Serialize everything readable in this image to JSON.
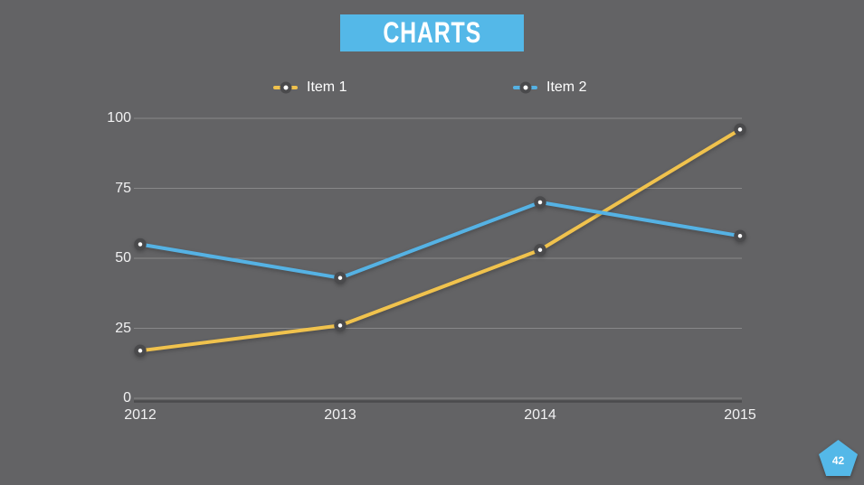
{
  "slide": {
    "title": "CHARTS",
    "page_number": "42",
    "colors": {
      "background": "#636365",
      "accent_blue": "#54b8e8",
      "grid_light": "rgba(255,255,255,0.24)",
      "axis_dark": "#4b4b4d",
      "tick_text": "#f1f1f2",
      "dot_ring": "#4a4a4c"
    }
  },
  "chart_data": {
    "type": "line",
    "title": "CHARTS",
    "x": [
      "2012",
      "2013",
      "2014",
      "2015"
    ],
    "series": [
      {
        "name": "Item 1",
        "color": "#f0c24d",
        "values": [
          17,
          26,
          53,
          96
        ]
      },
      {
        "name": "Item 2",
        "color": "#55b2e4",
        "values": [
          55,
          43,
          70,
          58
        ]
      }
    ],
    "ylim": [
      0,
      100
    ],
    "yticks": [
      0,
      25,
      50,
      75,
      100
    ],
    "grid": true,
    "legend_position": "top"
  }
}
